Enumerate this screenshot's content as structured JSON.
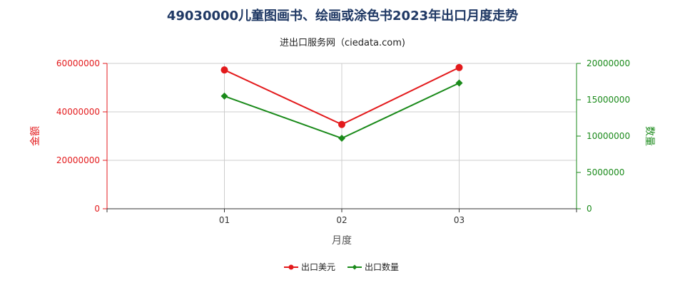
{
  "title": "49030000儿童图画书、绘画或涂色书2023年出口月度走势",
  "subtitle": "进出口服务网（ciedata.com)",
  "colors": {
    "amount": "#e31a1c",
    "quantity": "#1a8a1a",
    "title": "#1f3864"
  },
  "chart_data": {
    "type": "line",
    "categories": [
      "01",
      "02",
      "03"
    ],
    "xlabel": "月度",
    "y_left": {
      "label": "金额",
      "ylim": [
        0,
        60000000
      ],
      "ticks": [
        "0",
        "20000000",
        "40000000",
        "60000000"
      ]
    },
    "y_right": {
      "label": "数量",
      "ylim": [
        0,
        20000000
      ],
      "ticks": [
        "0",
        "5000000",
        "10000000",
        "15000000",
        "20000000"
      ]
    },
    "series": [
      {
        "name": "出口美元",
        "axis": "left",
        "marker": "circle",
        "values": [
          57300000,
          34800000,
          58300000
        ]
      },
      {
        "name": "出口数量",
        "axis": "right",
        "marker": "diamond",
        "values": [
          15500000,
          9700000,
          17300000
        ]
      }
    ],
    "grid": true,
    "legend_position": "bottom"
  }
}
